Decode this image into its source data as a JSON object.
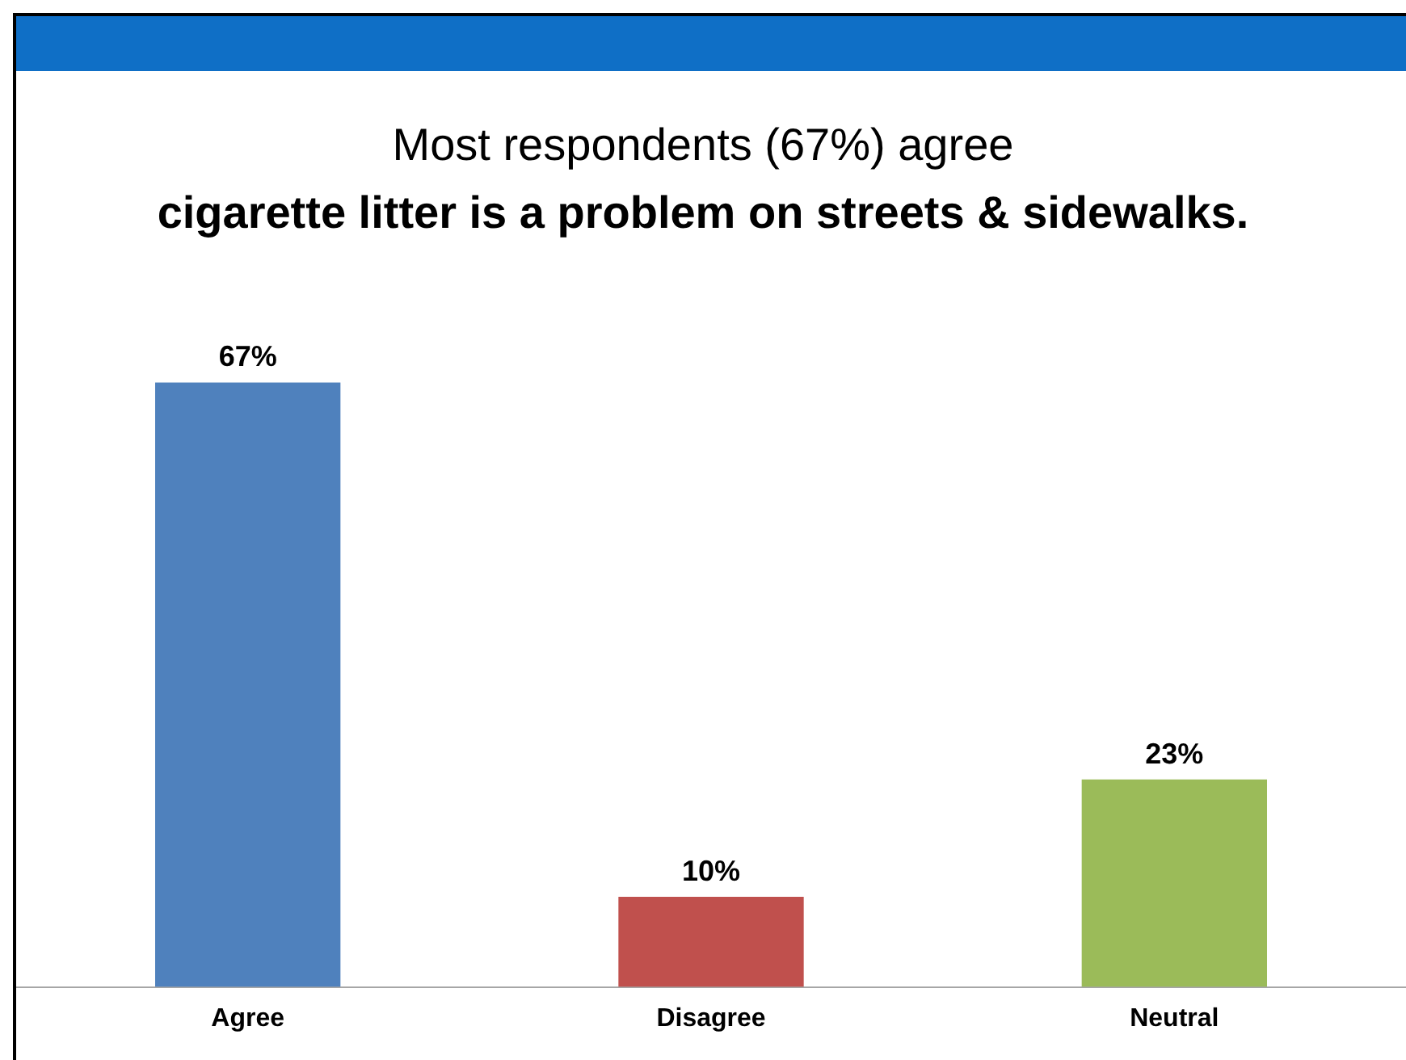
{
  "chart_data": {
    "type": "bar",
    "title": "Most respondents (67%) agree",
    "subtitle": "cigarette litter is a problem on streets & sidewalks.",
    "categories": [
      "Agree",
      "Disagree",
      "Neutral"
    ],
    "values": [
      67,
      10,
      23
    ],
    "colors": [
      "#4f81bd",
      "#c0504d",
      "#9bbb59"
    ],
    "value_labels": [
      "67%",
      "10%",
      "23%"
    ],
    "grid": false,
    "legend": false
  }
}
